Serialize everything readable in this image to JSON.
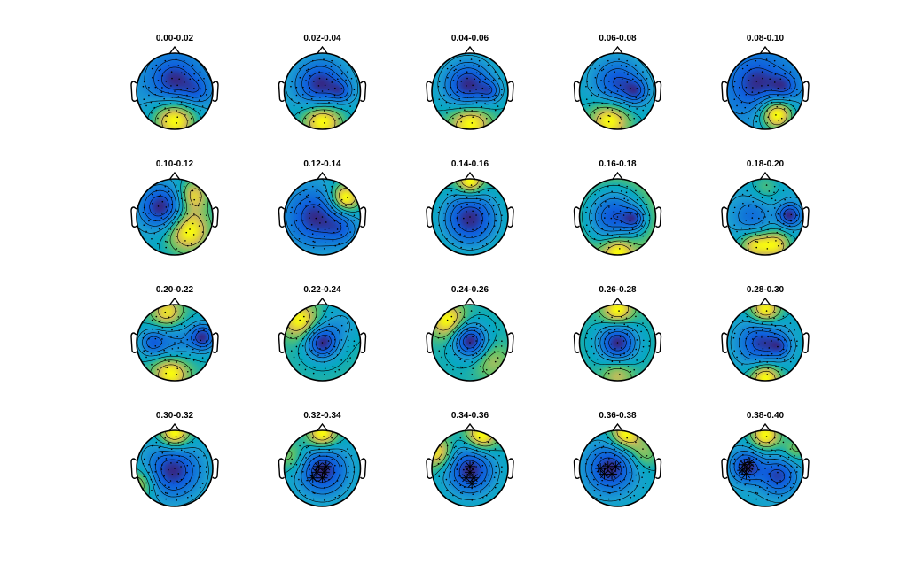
{
  "chart_data": {
    "type": "topoplot-grid",
    "layout": {
      "rows": 4,
      "cols": 5
    },
    "colormap": "parula",
    "colors": {
      "low": "#352a87",
      "mid_low": "#0f5cdd",
      "mid": "#1c9fd2",
      "mid_high": "#5dc36a",
      "high": "#f9fb0e",
      "contour": "#000000",
      "outline": "#000000"
    },
    "panels": [
      {
        "title": "0.00-0.02",
        "sources": [
          {
            "x": 0.0,
            "y": 0.25,
            "v": -0.9,
            "s": 0.45
          },
          {
            "x": 0.0,
            "y": -0.75,
            "v": 1.0,
            "s": 0.45
          },
          {
            "x": 0.6,
            "y": 0.0,
            "v": -0.4,
            "s": 0.25
          }
        ],
        "stars": []
      },
      {
        "title": "0.02-0.04",
        "sources": [
          {
            "x": -0.05,
            "y": 0.15,
            "v": -1.1,
            "s": 0.45
          },
          {
            "x": 0.0,
            "y": -0.75,
            "v": 0.9,
            "s": 0.4
          },
          {
            "x": 0.5,
            "y": 0.0,
            "v": -0.5,
            "s": 0.2
          }
        ],
        "stars": []
      },
      {
        "title": "0.04-0.06",
        "sources": [
          {
            "x": -0.05,
            "y": 0.15,
            "v": -1.1,
            "s": 0.45
          },
          {
            "x": 0.0,
            "y": -0.8,
            "v": 0.7,
            "s": 0.4
          },
          {
            "x": 0.55,
            "y": 0.0,
            "v": -0.5,
            "s": 0.2
          }
        ],
        "stars": []
      },
      {
        "title": "0.06-0.08",
        "sources": [
          {
            "x": 0.0,
            "y": 0.2,
            "v": -0.9,
            "s": 0.45
          },
          {
            "x": -0.2,
            "y": -0.75,
            "v": 0.8,
            "s": 0.4
          },
          {
            "x": 0.5,
            "y": 0.0,
            "v": -0.6,
            "s": 0.22
          }
        ],
        "stars": []
      },
      {
        "title": "0.08-0.10",
        "sources": [
          {
            "x": -0.2,
            "y": 0.2,
            "v": -0.7,
            "s": 0.5
          },
          {
            "x": 0.3,
            "y": -0.6,
            "v": 1.0,
            "s": 0.35
          },
          {
            "x": 0.5,
            "y": 0.1,
            "v": -0.5,
            "s": 0.25
          }
        ],
        "stars": []
      },
      {
        "title": "0.10-0.12",
        "sources": [
          {
            "x": -0.35,
            "y": 0.25,
            "v": -1.1,
            "s": 0.4
          },
          {
            "x": 0.35,
            "y": -0.35,
            "v": 0.8,
            "s": 0.45
          },
          {
            "x": 0.5,
            "y": 0.6,
            "v": 0.6,
            "s": 0.3
          }
        ],
        "stars": []
      },
      {
        "title": "0.12-0.14",
        "sources": [
          {
            "x": -0.2,
            "y": 0.0,
            "v": -1.0,
            "s": 0.5
          },
          {
            "x": 0.6,
            "y": 0.5,
            "v": 1.0,
            "s": 0.3
          },
          {
            "x": 0.5,
            "y": -0.3,
            "v": -0.5,
            "s": 0.3
          }
        ],
        "stars": []
      },
      {
        "title": "0.14-0.16",
        "sources": [
          {
            "x": 0.0,
            "y": -0.05,
            "v": -1.1,
            "s": 0.55
          },
          {
            "x": 0.0,
            "y": 0.9,
            "v": 0.6,
            "s": 0.25
          }
        ],
        "stars": []
      },
      {
        "title": "0.16-0.18",
        "sources": [
          {
            "x": -0.1,
            "y": 0.0,
            "v": -1.0,
            "s": 0.5
          },
          {
            "x": 0.45,
            "y": -0.05,
            "v": -0.6,
            "s": 0.2
          },
          {
            "x": 0.0,
            "y": -0.85,
            "v": 0.5,
            "s": 0.3
          }
        ],
        "stars": []
      },
      {
        "title": "0.18-0.20",
        "sources": [
          {
            "x": 0.65,
            "y": 0.05,
            "v": -1.3,
            "s": 0.22
          },
          {
            "x": -0.35,
            "y": 0.0,
            "v": -0.7,
            "s": 0.35
          },
          {
            "x": -0.3,
            "y": -0.75,
            "v": 0.9,
            "s": 0.3
          },
          {
            "x": 0.3,
            "y": -0.75,
            "v": 0.9,
            "s": 0.3
          },
          {
            "x": 0.0,
            "y": 0.8,
            "v": 0.4,
            "s": 0.3
          }
        ],
        "stars": []
      },
      {
        "title": "0.20-0.22",
        "sources": [
          {
            "x": 0.75,
            "y": 0.15,
            "v": -1.3,
            "s": 0.25
          },
          {
            "x": -0.6,
            "y": 0.0,
            "v": -0.9,
            "s": 0.25
          },
          {
            "x": 0.0,
            "y": 0.0,
            "v": -0.6,
            "s": 0.35
          },
          {
            "x": -0.1,
            "y": -0.8,
            "v": 0.8,
            "s": 0.35
          },
          {
            "x": -0.2,
            "y": 0.8,
            "v": 0.7,
            "s": 0.3
          }
        ],
        "stars": []
      },
      {
        "title": "0.22-0.24",
        "sources": [
          {
            "x": 0.0,
            "y": 0.0,
            "v": -1.1,
            "s": 0.3
          },
          {
            "x": -0.6,
            "y": 0.6,
            "v": 0.6,
            "s": 0.35
          },
          {
            "x": 0.5,
            "y": 0.5,
            "v": -0.3,
            "s": 0.35
          }
        ],
        "stars": []
      },
      {
        "title": "0.24-0.26",
        "sources": [
          {
            "x": 0.0,
            "y": 0.05,
            "v": -1.1,
            "s": 0.3
          },
          {
            "x": -0.6,
            "y": 0.6,
            "v": 0.6,
            "s": 0.35
          },
          {
            "x": 0.6,
            "y": -0.5,
            "v": 0.3,
            "s": 0.35
          }
        ],
        "stars": []
      },
      {
        "title": "0.26-0.28",
        "sources": [
          {
            "x": 0.0,
            "y": 0.0,
            "v": -0.9,
            "s": 0.35
          },
          {
            "x": 0.0,
            "y": 0.85,
            "v": 0.5,
            "s": 0.3
          },
          {
            "x": 0.0,
            "y": -0.85,
            "v": 0.3,
            "s": 0.3
          }
        ],
        "stars": []
      },
      {
        "title": "0.28-0.30",
        "sources": [
          {
            "x": -0.1,
            "y": 0.0,
            "v": -1.0,
            "s": 0.45
          },
          {
            "x": 0.0,
            "y": 0.85,
            "v": 0.8,
            "s": 0.3
          },
          {
            "x": 0.0,
            "y": -0.9,
            "v": 0.8,
            "s": 0.3
          },
          {
            "x": 0.4,
            "y": -0.1,
            "v": -0.5,
            "s": 0.2
          }
        ],
        "stars": []
      },
      {
        "title": "0.30-0.32",
        "sources": [
          {
            "x": -0.05,
            "y": -0.05,
            "v": -1.0,
            "s": 0.5
          },
          {
            "x": 0.0,
            "y": 0.9,
            "v": 0.8,
            "s": 0.3
          },
          {
            "x": -0.9,
            "y": -0.4,
            "v": 0.5,
            "s": 0.3
          }
        ],
        "stars": []
      },
      {
        "title": "0.32-0.34",
        "sources": [
          {
            "x": 0.0,
            "y": -0.05,
            "v": -1.1,
            "s": 0.45
          },
          {
            "x": 0.0,
            "y": 0.9,
            "v": 0.8,
            "s": 0.3
          },
          {
            "x": -0.8,
            "y": 0.3,
            "v": 0.4,
            "s": 0.3
          }
        ],
        "stars": [
          [
            -0.15,
            -0.1
          ],
          [
            0.05,
            -0.1
          ],
          [
            0.0,
            -0.25
          ],
          [
            -0.1,
            0.05
          ],
          [
            0.1,
            0.05
          ],
          [
            -0.25,
            -0.25
          ]
        ]
      },
      {
        "title": "0.34-0.36",
        "sources": [
          {
            "x": 0.0,
            "y": -0.05,
            "v": -1.1,
            "s": 0.45
          },
          {
            "x": 0.3,
            "y": 0.85,
            "v": 0.7,
            "s": 0.3
          },
          {
            "x": -0.85,
            "y": 0.4,
            "v": 0.6,
            "s": 0.3
          }
        ],
        "stars": [
          [
            0.0,
            -0.1
          ],
          [
            -0.1,
            -0.25
          ],
          [
            0.1,
            -0.25
          ],
          [
            0.0,
            0.05
          ],
          [
            0.05,
            -0.4
          ]
        ]
      },
      {
        "title": "0.36-0.38",
        "sources": [
          {
            "x": -0.2,
            "y": 0.0,
            "v": -1.1,
            "s": 0.45
          },
          {
            "x": 0.2,
            "y": 0.9,
            "v": 0.8,
            "s": 0.3
          },
          {
            "x": 0.7,
            "y": 0.4,
            "v": 0.4,
            "s": 0.3
          }
        ],
        "stars": [
          [
            -0.45,
            0.0
          ],
          [
            -0.25,
            0.05
          ],
          [
            -0.35,
            -0.15
          ],
          [
            -0.05,
            0.05
          ],
          [
            -0.15,
            -0.15
          ]
        ]
      },
      {
        "title": "0.38-0.40",
        "sources": [
          {
            "x": -0.5,
            "y": 0.05,
            "v": -1.0,
            "s": 0.3
          },
          {
            "x": 0.35,
            "y": -0.2,
            "v": -0.9,
            "s": 0.35
          },
          {
            "x": 0.0,
            "y": 0.9,
            "v": 0.8,
            "s": 0.3
          },
          {
            "x": 0.8,
            "y": 0.5,
            "v": 0.4,
            "s": 0.25
          }
        ],
        "stars": [
          [
            -0.55,
            0.1
          ],
          [
            -0.45,
            0.0
          ],
          [
            -0.6,
            -0.05
          ],
          [
            -0.4,
            0.15
          ],
          [
            -0.5,
            -0.15
          ]
        ]
      }
    ]
  }
}
